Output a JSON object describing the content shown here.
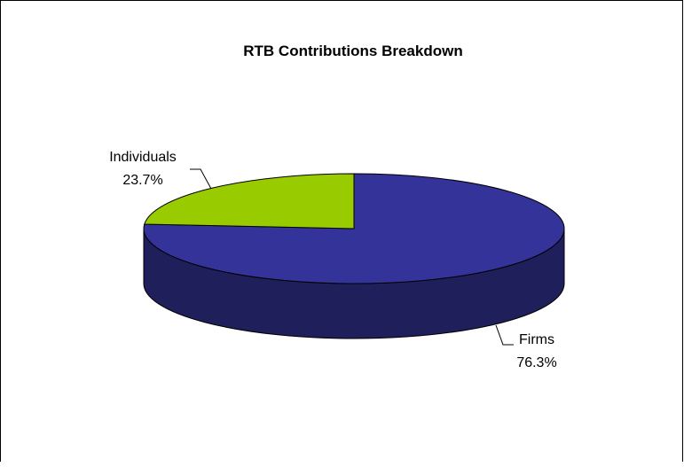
{
  "chart_data": {
    "type": "pie",
    "title": "RTB Contributions Breakdown",
    "slices": [
      {
        "label": "Firms",
        "value": 76.3,
        "value_label": "76.3%",
        "color": "#333399"
      },
      {
        "label": "Individuals",
        "value": 23.7,
        "value_label": "23.7%",
        "color": "#99CC00"
      }
    ],
    "side_color": "#1F1F5C",
    "legend": "none"
  }
}
